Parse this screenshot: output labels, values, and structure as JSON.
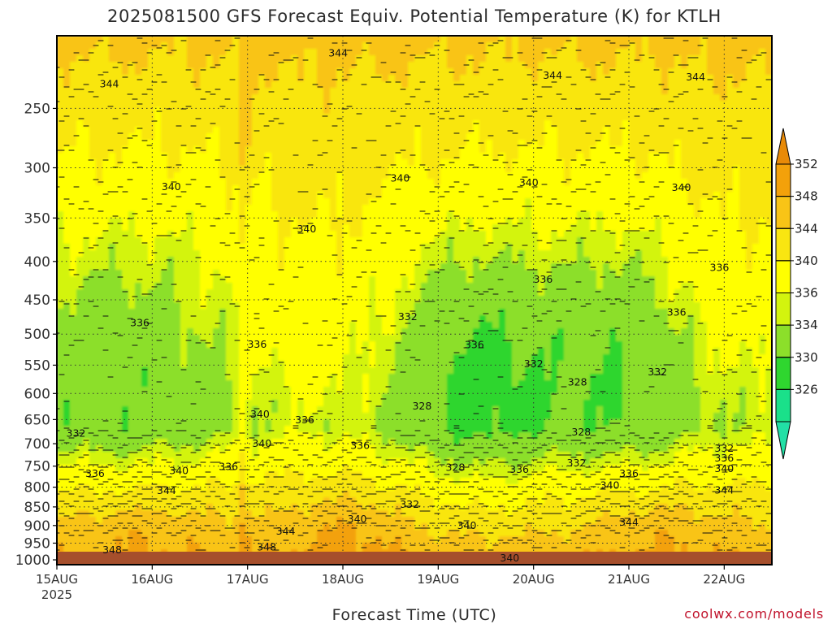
{
  "chart_data": {
    "type": "heatmap",
    "title": "2025081500 GFS Forecast Equiv. Potential Temperature (K) for KTLH",
    "xlabel": "Forecast Time (UTC)",
    "ylabel": "",
    "x_ticks": [
      "15AUG",
      "16AUG",
      "17AUG",
      "18AUG",
      "19AUG",
      "20AUG",
      "21AUG",
      "22AUG"
    ],
    "x_year_label": "2025",
    "x_range_days": [
      0,
      7.5
    ],
    "y_ticks": [
      250,
      300,
      350,
      400,
      450,
      500,
      550,
      600,
      650,
      700,
      750,
      800,
      850,
      900,
      950,
      1000
    ],
    "y_range_hpa": [
      200,
      1015
    ],
    "y_scale": "log",
    "y_reversed": true,
    "grid": true,
    "colorbar": {
      "placement": "right",
      "levels": [
        352,
        348,
        344,
        340,
        336,
        334,
        330,
        326
      ],
      "bands": [
        {
          "lo": 348,
          "hi": 352,
          "color": "#f3a10a"
        },
        {
          "lo": 344,
          "hi": 348,
          "color": "#f9c416"
        },
        {
          "lo": 340,
          "hi": 344,
          "color": "#f9e611"
        },
        {
          "lo": 336,
          "hi": 340,
          "color": "#ffff00"
        },
        {
          "lo": 334,
          "hi": 336,
          "color": "#d3f40e"
        },
        {
          "lo": 330,
          "hi": 334,
          "color": "#8cdf2a"
        },
        {
          "lo": 326,
          "hi": 330,
          "color": "#2fd62f"
        },
        {
          "lo": 322,
          "hi": 326,
          "color": "#1ae08a"
        }
      ],
      "top_extend_color": "#e88a08",
      "bottom_extend_color": "#22e0a6"
    },
    "ground_color": "#a64f2c",
    "contour_labels": [
      {
        "t": 0.55,
        "p": 232,
        "v": "344"
      },
      {
        "t": 2.95,
        "p": 211,
        "v": "344"
      },
      {
        "t": 5.2,
        "p": 226,
        "v": "344"
      },
      {
        "t": 6.7,
        "p": 227,
        "v": "344"
      },
      {
        "t": 1.2,
        "p": 318,
        "v": "340"
      },
      {
        "t": 3.6,
        "p": 310,
        "v": "340"
      },
      {
        "t": 4.95,
        "p": 314,
        "v": "340"
      },
      {
        "t": 6.55,
        "p": 319,
        "v": "340"
      },
      {
        "t": 2.62,
        "p": 362,
        "v": "340"
      },
      {
        "t": 5.1,
        "p": 423,
        "v": "336"
      },
      {
        "t": 6.95,
        "p": 408,
        "v": "336"
      },
      {
        "t": 6.5,
        "p": 468,
        "v": "336"
      },
      {
        "t": 0.87,
        "p": 483,
        "v": "336"
      },
      {
        "t": 2.1,
        "p": 516,
        "v": "336"
      },
      {
        "t": 3.68,
        "p": 474,
        "v": "332"
      },
      {
        "t": 4.38,
        "p": 517,
        "v": "336"
      },
      {
        "t": 5.0,
        "p": 548,
        "v": "332"
      },
      {
        "t": 6.3,
        "p": 562,
        "v": "332"
      },
      {
        "t": 5.46,
        "p": 580,
        "v": "328"
      },
      {
        "t": 3.83,
        "p": 624,
        "v": "328"
      },
      {
        "t": 5.5,
        "p": 676,
        "v": "328"
      },
      {
        "t": 2.13,
        "p": 640,
        "v": "340"
      },
      {
        "t": 2.6,
        "p": 651,
        "v": "336"
      },
      {
        "t": 0.2,
        "p": 678,
        "v": "332"
      },
      {
        "t": 2.15,
        "p": 700,
        "v": "340"
      },
      {
        "t": 3.18,
        "p": 704,
        "v": "336"
      },
      {
        "t": 4.18,
        "p": 753,
        "v": "328"
      },
      {
        "t": 4.85,
        "p": 758,
        "v": "336"
      },
      {
        "t": 5.45,
        "p": 743,
        "v": "332"
      },
      {
        "t": 6.0,
        "p": 768,
        "v": "336"
      },
      {
        "t": 5.8,
        "p": 796,
        "v": "340"
      },
      {
        "t": 7.0,
        "p": 710,
        "v": "332"
      },
      {
        "t": 7.0,
        "p": 732,
        "v": "336"
      },
      {
        "t": 7.0,
        "p": 756,
        "v": "340"
      },
      {
        "t": 7.0,
        "p": 808,
        "v": "344"
      },
      {
        "t": 0.4,
        "p": 768,
        "v": "336"
      },
      {
        "t": 1.28,
        "p": 761,
        "v": "340"
      },
      {
        "t": 1.8,
        "p": 751,
        "v": "336"
      },
      {
        "t": 1.15,
        "p": 809,
        "v": "344"
      },
      {
        "t": 3.7,
        "p": 844,
        "v": "332"
      },
      {
        "t": 3.15,
        "p": 883,
        "v": "340"
      },
      {
        "t": 4.3,
        "p": 900,
        "v": "340"
      },
      {
        "t": 6.0,
        "p": 892,
        "v": "344"
      },
      {
        "t": 2.4,
        "p": 916,
        "v": "344"
      },
      {
        "t": 0.58,
        "p": 970,
        "v": "348"
      },
      {
        "t": 2.2,
        "p": 962,
        "v": "348"
      },
      {
        "t": 4.75,
        "p": 995,
        "v": "340"
      }
    ]
  },
  "credit": "coolwx.com/models"
}
